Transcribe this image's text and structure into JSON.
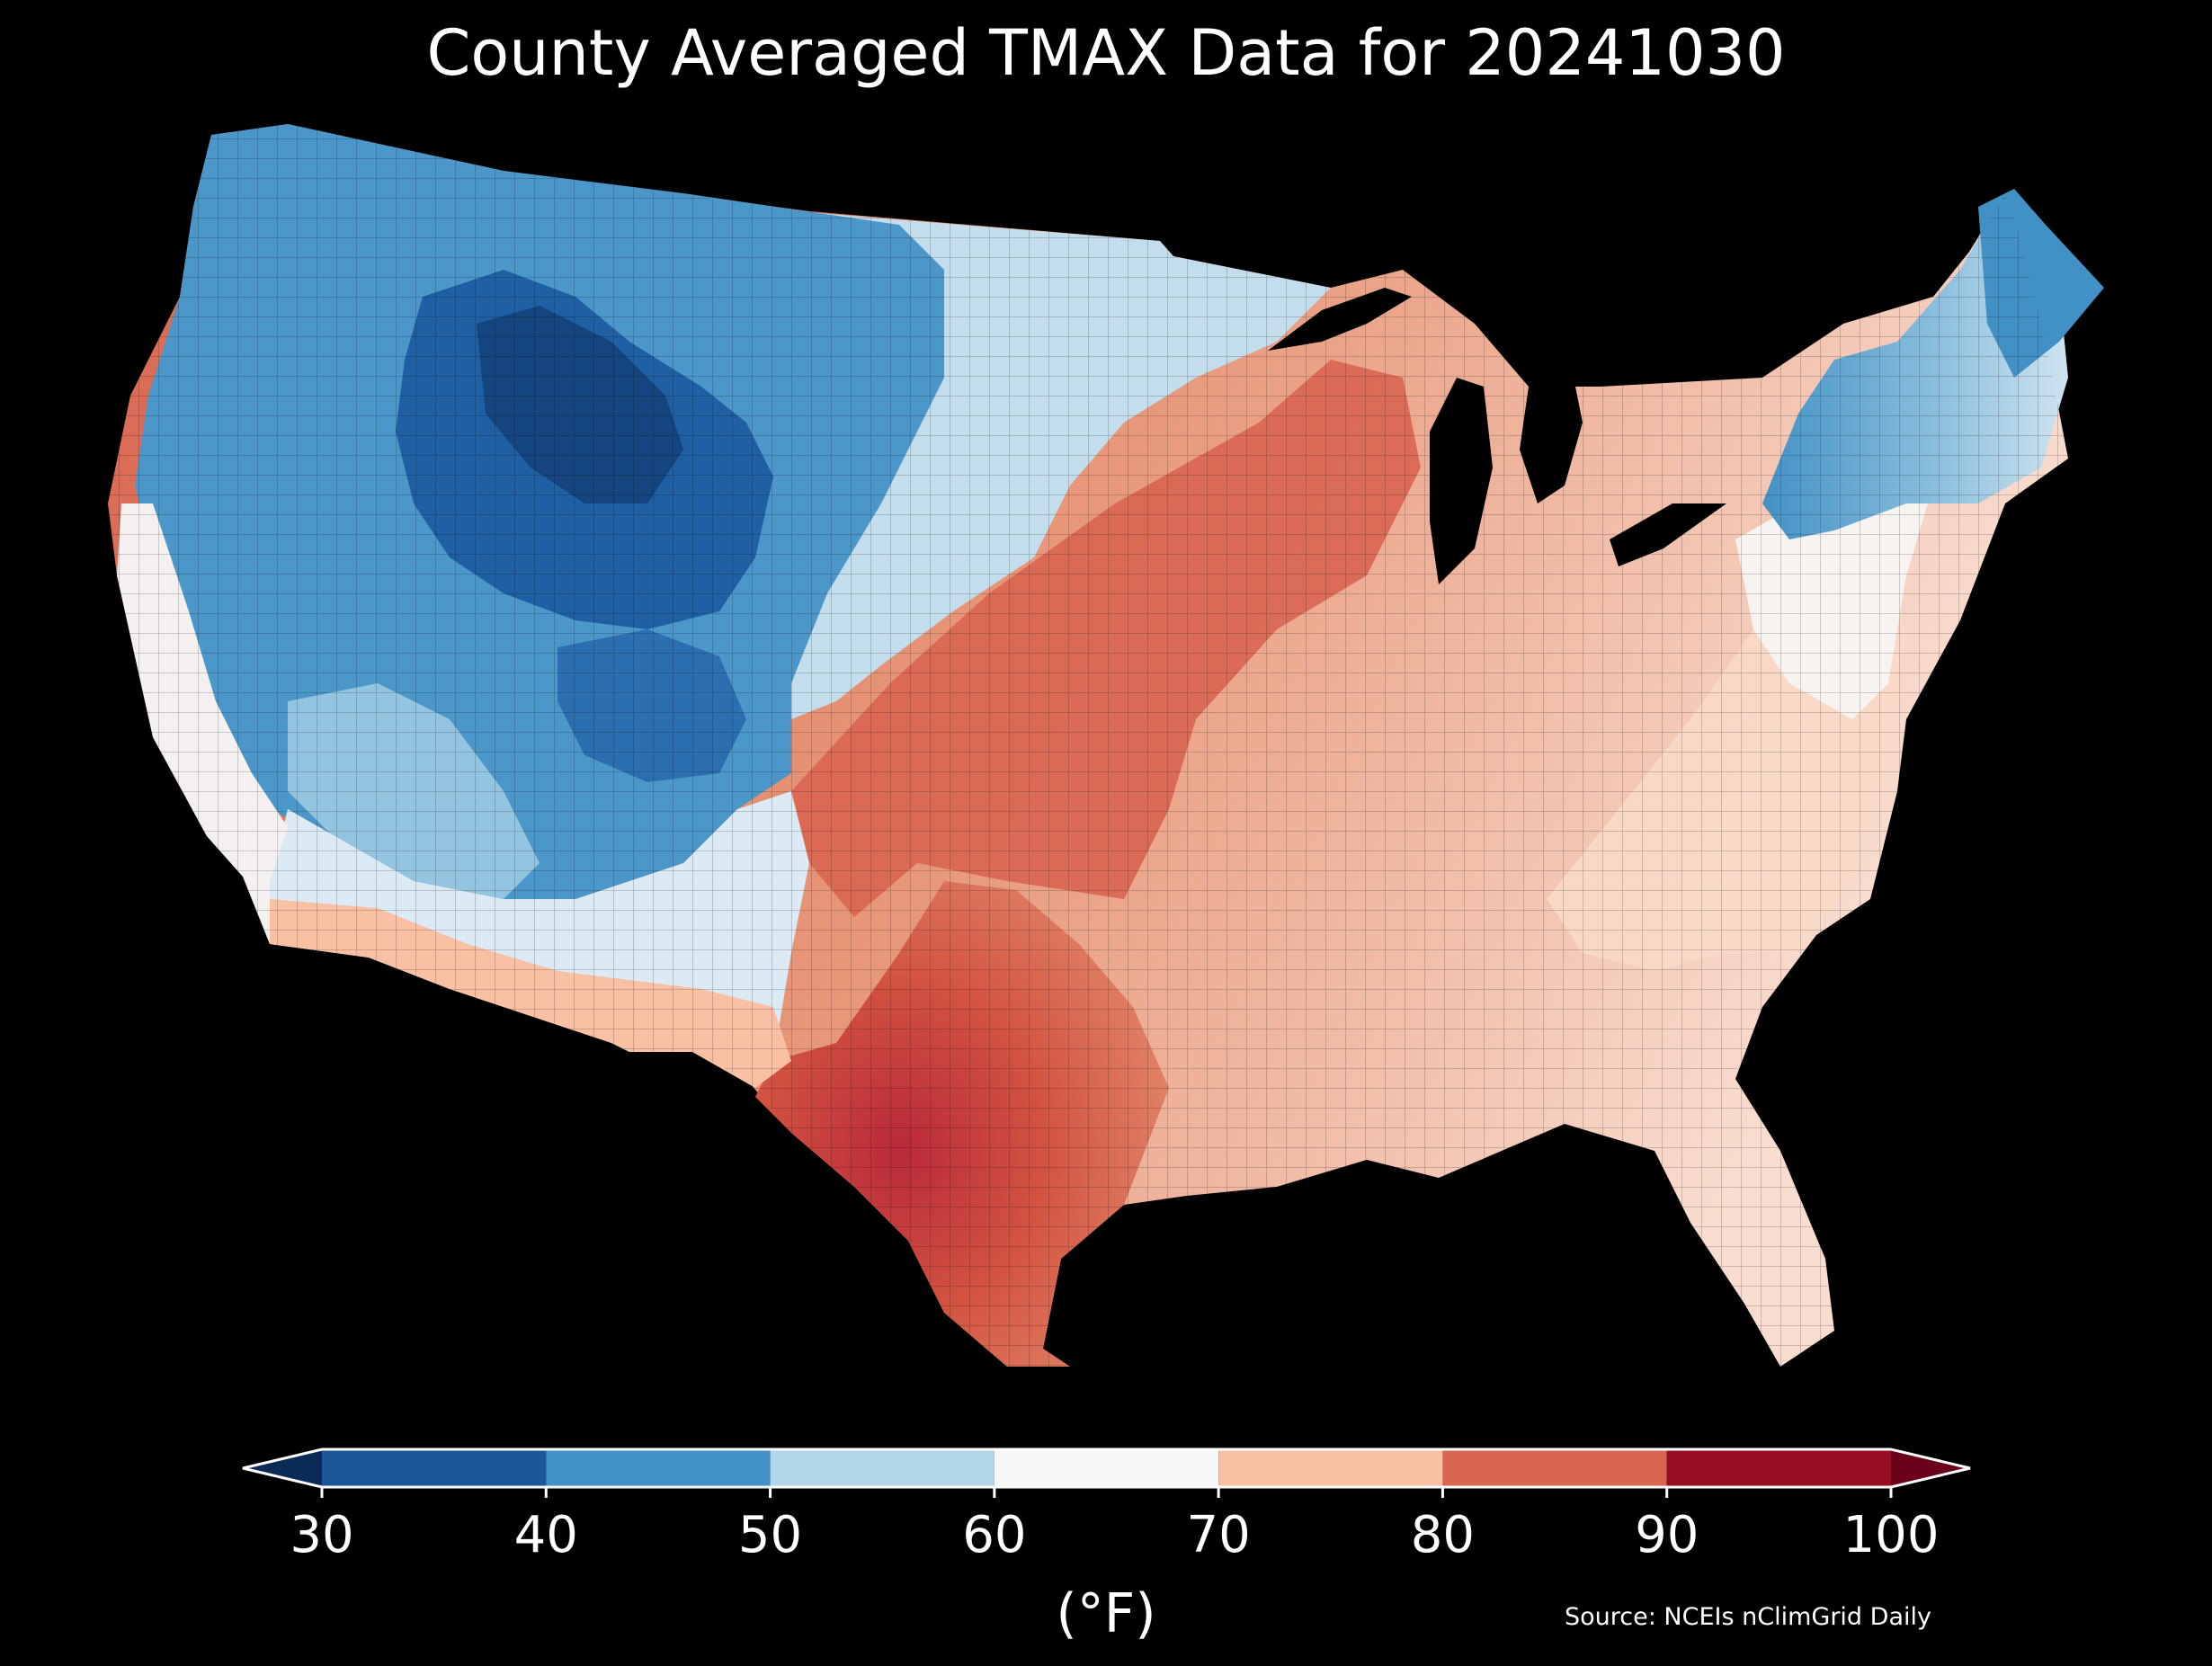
{
  "title": "County Averaged TMAX Data for 20241030",
  "colorbar": {
    "ticks": [
      "30",
      "40",
      "50",
      "60",
      "70",
      "80",
      "90",
      "100"
    ],
    "bins": [
      {
        "range": [
          30,
          40
        ],
        "color": "#1b5796"
      },
      {
        "range": [
          40,
          50
        ],
        "color": "#4291c6"
      },
      {
        "range": [
          50,
          60
        ],
        "color": "#b4d6ea"
      },
      {
        "range": [
          60,
          70
        ],
        "color": "#f7f7f7"
      },
      {
        "range": [
          70,
          80
        ],
        "color": "#f9c0a3"
      },
      {
        "range": [
          80,
          90
        ],
        "color": "#d96551"
      },
      {
        "range": [
          90,
          100
        ],
        "color": "#970d24"
      }
    ],
    "under_color": "#0b2a55",
    "over_color": "#6a0019",
    "unit_label": "(°F)"
  },
  "source": "Source: NCEIs nClimGrid Daily",
  "map": {
    "region": "Contiguous United States counties",
    "background_color": "#000000",
    "regional_colors": {
      "northern_rockies": "#1b5796",
      "northwest": "#4291c6",
      "northern_plains": "#b4d6ea",
      "california_coast": "#f7f7f7",
      "southwest_desert": "#f9c0a3",
      "central_plains_midwest": "#d96551",
      "south_texas": "#b9293a",
      "southeast_appalachia": "#f9c0a3",
      "new_england": "#4291c6",
      "mid_atlantic": "#f7f7f7"
    }
  }
}
